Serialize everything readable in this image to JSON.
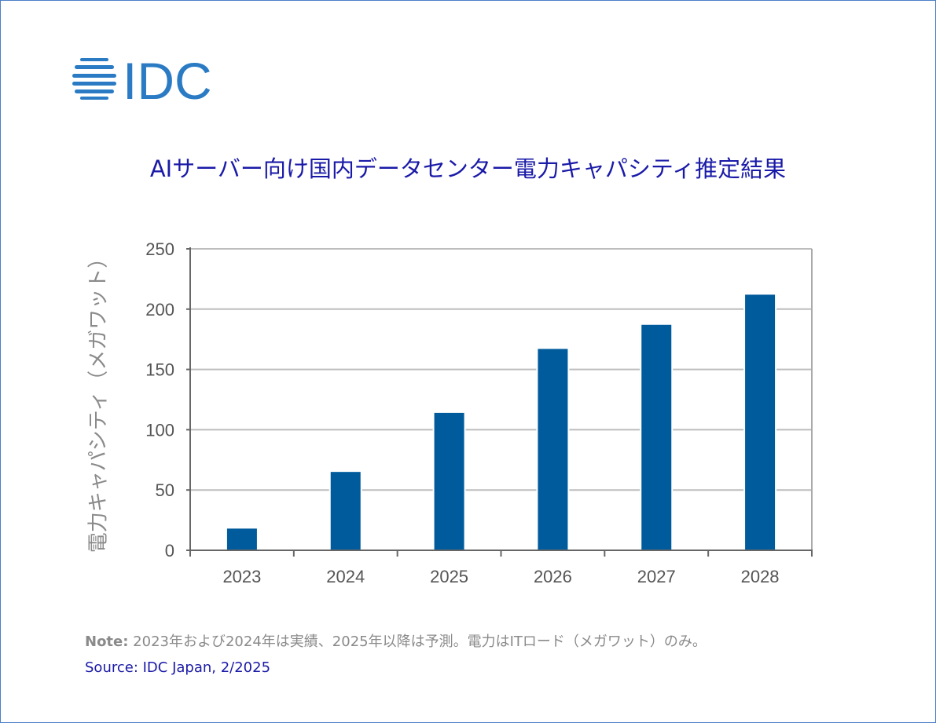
{
  "logo": {
    "text": "IDC",
    "color": "#2a7bc4"
  },
  "chart_data": {
    "type": "bar",
    "title": "AIサーバー向け国内データセンター電力キャパシティ推定結果",
    "ylabel": "電力キャパシティ（メガワット）",
    "xlabel": "",
    "categories": [
      "2023",
      "2024",
      "2025",
      "2026",
      "2027",
      "2028"
    ],
    "values": [
      18,
      65,
      114,
      167,
      187,
      212
    ],
    "ylim": [
      0,
      250
    ],
    "yticks": [
      "0",
      "50",
      "100",
      "150",
      "200",
      "250"
    ],
    "grid": true,
    "bar_color": "#005b9c"
  },
  "note": {
    "label": "Note:",
    "text": " 2023年および2024年は実績、2025年以降は予測。電力はITロード（メガワット）のみ。"
  },
  "source": "Source: IDC Japan, 2/2025"
}
